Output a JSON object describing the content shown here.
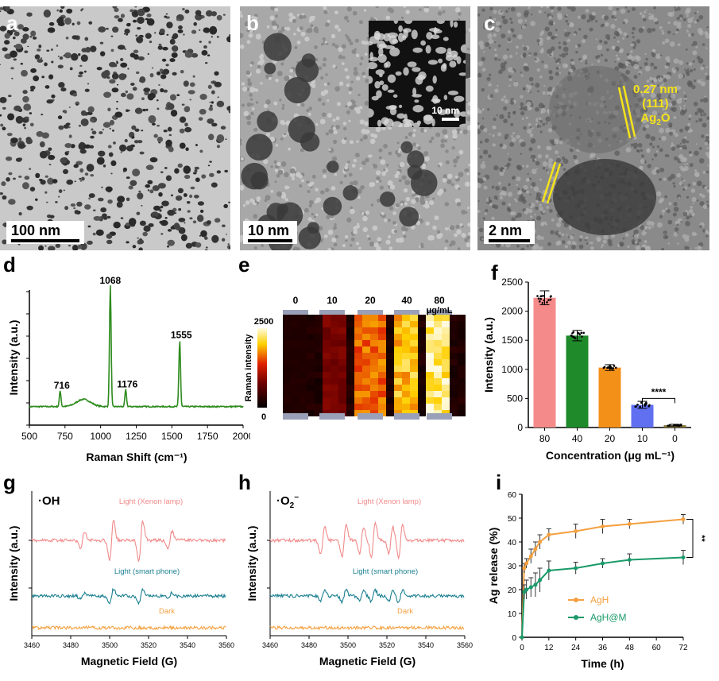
{
  "panels": {
    "a": {
      "label": "a",
      "scale_bar": "100 nm"
    },
    "b": {
      "label": "b",
      "scale_bar": "10 nm",
      "inset_scale_bar": "10 nm"
    },
    "c": {
      "label": "c",
      "scale_bar": "2 nm",
      "annotation_lines": [
        "0.27 nm",
        "(111)",
        "Ag",
        "2",
        "O"
      ]
    },
    "d": {
      "label": "d"
    },
    "e": {
      "label": "e"
    },
    "f": {
      "label": "f"
    },
    "g": {
      "label": "g"
    },
    "h": {
      "label": "h"
    },
    "i": {
      "label": "i"
    }
  },
  "chart_data": [
    {
      "panel": "d",
      "type": "line",
      "xlabel": "Raman Shift (cm⁻¹)",
      "ylabel": "Intensity (a.u.)",
      "xlim": [
        500,
        2000
      ],
      "x_ticks": [
        "500",
        "750",
        "1000",
        "1250",
        "1500",
        "1750",
        "2000"
      ],
      "color": "#2e8b1e",
      "peak_labels": [
        "716",
        "1068",
        "1176",
        "1555"
      ],
      "peaks": [
        {
          "x": 716,
          "height": 0.13
        },
        {
          "x": 1068,
          "height": 1.0
        },
        {
          "x": 1176,
          "height": 0.14
        },
        {
          "x": 1555,
          "height": 0.55
        }
      ]
    },
    {
      "panel": "e",
      "type": "heatmap",
      "colorbar_label": "Raman intensity",
      "colorbar_max": "2500",
      "colorbar_min": "0",
      "concentration_labels": [
        "0",
        "10",
        "20",
        "40",
        "80"
      ],
      "unit_label": "μg/mL",
      "column_levels": [
        0.1,
        0.35,
        0.7,
        0.85,
        0.98
      ]
    },
    {
      "panel": "f",
      "type": "bar",
      "categories": [
        "80",
        "40",
        "20",
        "10",
        "0"
      ],
      "values": [
        2230,
        1580,
        1030,
        390,
        40
      ],
      "errors": [
        120,
        90,
        50,
        60,
        15
      ],
      "colors": [
        "#f58a8a",
        "#1f8a2a",
        "#f39018",
        "#6070f0",
        "#8a7a40"
      ],
      "xlabel": "Concentration (μg mL⁻¹)",
      "ylabel": "Intensity (a.u.)",
      "ylim": [
        0,
        2500
      ],
      "y_ticks": [
        "0",
        "500",
        "1000",
        "1500",
        "2000",
        "2500"
      ],
      "significance": "****"
    },
    {
      "panel": "g",
      "type": "line",
      "title": "·OH",
      "xlabel": "Magnetic Field (G)",
      "ylabel": "Intensity (a.u.)",
      "xlim": [
        3460,
        3560
      ],
      "x_ticks": [
        "3460",
        "3480",
        "3500",
        "3520",
        "3540",
        "3560"
      ],
      "series": [
        {
          "name": "Light (Xenon lamp)",
          "color": "#f08a8a"
        },
        {
          "name": "Light (smart phone)",
          "color": "#1a7f90"
        },
        {
          "name": "Dark",
          "color": "#f5a040"
        }
      ]
    },
    {
      "panel": "h",
      "type": "line",
      "title_main": "·O",
      "title_sub": "2",
      "title_sup": "−",
      "xlabel": "Magnetic Field (G)",
      "ylabel": "Intensity (a.u.)",
      "xlim": [
        3460,
        3560
      ],
      "x_ticks": [
        "3460",
        "3480",
        "3500",
        "3520",
        "3540",
        "3560"
      ],
      "series": [
        {
          "name": "Light (Xenon lamp)",
          "color": "#f08a8a"
        },
        {
          "name": "Light (smart phone)",
          "color": "#1a7f90"
        },
        {
          "name": "Dark",
          "color": "#f5a040"
        }
      ]
    },
    {
      "panel": "i",
      "type": "line",
      "xlabel": "Time (h)",
      "ylabel": "Ag release (%)",
      "xlim": [
        0,
        72
      ],
      "ylim": [
        0,
        60
      ],
      "x_ticks": [
        "0",
        "12",
        "24",
        "36",
        "48",
        "60",
        "72"
      ],
      "y_ticks": [
        "0",
        "10",
        "20",
        "30",
        "40",
        "50",
        "60"
      ],
      "significance": "**",
      "series": [
        {
          "name": "AgH",
          "color": "#f5a040",
          "x": [
            0,
            1,
            2,
            4,
            6,
            8,
            12,
            24,
            36,
            48,
            72
          ],
          "y": [
            0,
            29,
            31,
            34,
            37,
            40,
            43,
            44.5,
            46.5,
            47.5,
            49.5
          ],
          "err": [
            0,
            2,
            2,
            3,
            3,
            3,
            2.5,
            3,
            3,
            2,
            2
          ]
        },
        {
          "name": "AgH@M",
          "color": "#1a9a6a",
          "x": [
            0,
            1,
            2,
            4,
            6,
            8,
            12,
            24,
            36,
            48,
            72
          ],
          "y": [
            0,
            19,
            20,
            21,
            22,
            24,
            28,
            29,
            31,
            32.5,
            33.5
          ],
          "err": [
            0,
            3,
            4,
            4,
            5,
            5,
            4,
            2.5,
            2,
            2.5,
            3
          ]
        }
      ]
    }
  ]
}
